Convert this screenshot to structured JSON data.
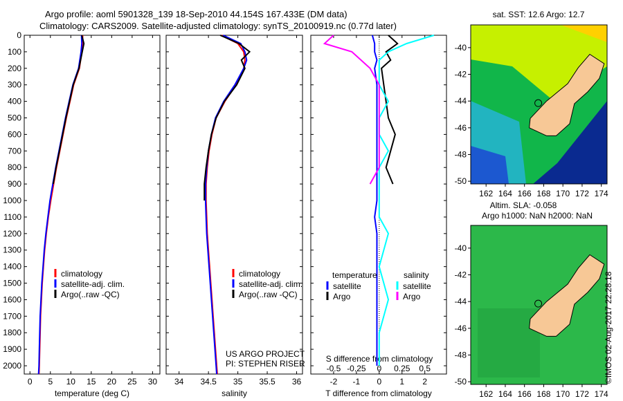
{
  "title_line1": "Argo profile: aoml 5901328_139 18-Sep-2010 44.154S 167.433E (DM data)",
  "title_line2": "Climatology: CARS2009. Satellite-adjusted climatology: synTS_20100919.nc (0.77d later)",
  "credit": "©IMOS 02-Aug-2017 22:28:18",
  "colors": {
    "climatology": "#ff0000",
    "satellite": "#0000ff",
    "argo": "#000000",
    "sal_satellite": "#00ffff",
    "sal_argo": "#ff00ff",
    "land": "#f7c896"
  },
  "chart_data": [
    {
      "type": "line",
      "id": "temperature",
      "xlabel": "temperature (deg C)",
      "ylabel": "",
      "xlim": [
        -1.4,
        31.8
      ],
      "ylim": [
        2050,
        0
      ],
      "xticks": [
        "0",
        "5",
        "10",
        "15",
        "20",
        "25",
        "30"
      ],
      "xtick_values": [
        0,
        5,
        10,
        15,
        20,
        25,
        30
      ],
      "yticks": [
        "0",
        "100",
        "200",
        "300",
        "400",
        "500",
        "600",
        "700",
        "800",
        "900",
        "1000",
        "1100",
        "1200",
        "1300",
        "1400",
        "1500",
        "1600",
        "1700",
        "1800",
        "1900",
        "2000"
      ],
      "legend": [
        "climatology",
        "satellite-adj. clim.",
        "Argo(..raw -QC)"
      ],
      "depth": [
        0,
        50,
        100,
        200,
        300,
        400,
        500,
        600,
        700,
        800,
        900,
        1000,
        1100,
        1200,
        1300,
        1400,
        1500,
        1600,
        1700,
        1800,
        1900,
        2000,
        2050
      ],
      "series": [
        {
          "name": "climatology",
          "color": "#ff0000",
          "values": [
            12.9,
            12.9,
            12.7,
            12.1,
            10.7,
            9.8,
            8.9,
            8.1,
            7.3,
            6.5,
            5.8,
            5.1,
            4.5,
            4.0,
            3.6,
            3.3,
            3.0,
            2.8,
            2.6,
            2.5,
            2.4,
            2.3,
            2.2
          ]
        },
        {
          "name": "satellite-adj. clim.",
          "color": "#0000ff",
          "values": [
            12.6,
            12.7,
            12.5,
            11.9,
            10.5,
            9.6,
            8.7,
            7.9,
            7.1,
            6.3,
            5.6,
            4.9,
            4.4,
            3.9,
            3.5,
            3.2,
            2.9,
            2.7,
            2.5,
            2.4,
            2.3,
            2.2,
            2.1
          ]
        },
        {
          "name": "Argo(..raw -QC)",
          "color": "#000000",
          "values": [
            12.7,
            13.2,
            12.8,
            12.0,
            10.6,
            9.7,
            8.8,
            8.0,
            7.2,
            6.4,
            5.7,
            null,
            null,
            null,
            null,
            null,
            null,
            null,
            null,
            null,
            null,
            null,
            null
          ]
        }
      ]
    },
    {
      "type": "line",
      "id": "salinity",
      "xlabel": "salinity",
      "xlim": [
        33.78,
        36.1
      ],
      "ylim": [
        2050,
        0
      ],
      "xticks": [
        "34",
        "34.5",
        "35",
        "35.5",
        "36"
      ],
      "xtick_values": [
        34,
        34.5,
        35,
        35.5,
        36
      ],
      "legend": [
        "climatology",
        "satellite-adj. clim.",
        "Argo(..raw -QC)"
      ],
      "annotation": [
        "US ARGO PROJECT",
        "PI: STEPHEN RISER"
      ],
      "depth": [
        0,
        50,
        100,
        150,
        200,
        300,
        400,
        500,
        600,
        700,
        800,
        900,
        1000,
        1100,
        1200,
        1300,
        1400,
        1500,
        1600,
        1700,
        1800,
        1900,
        2000,
        2050
      ],
      "series": [
        {
          "name": "climatology",
          "color": "#ff0000",
          "values": [
            34.72,
            35.0,
            35.1,
            35.12,
            35.1,
            34.97,
            34.78,
            34.63,
            34.56,
            34.51,
            34.48,
            34.46,
            34.46,
            34.47,
            34.48,
            34.5,
            34.52,
            34.54,
            34.56,
            34.58,
            34.6,
            34.62,
            34.64,
            34.65
          ]
        },
        {
          "name": "satellite-adj. clim.",
          "color": "#0000ff",
          "values": [
            34.75,
            35.05,
            35.12,
            35.15,
            35.1,
            34.95,
            34.76,
            34.62,
            34.55,
            34.5,
            34.47,
            34.45,
            34.45,
            34.46,
            34.47,
            34.49,
            34.51,
            34.53,
            34.55,
            34.57,
            34.59,
            34.61,
            34.63,
            34.64
          ]
        },
        {
          "name": "Argo(..raw -QC)",
          "color": "#000000",
          "values": [
            34.7,
            35.02,
            35.2,
            35.06,
            35.12,
            34.98,
            34.77,
            34.63,
            34.55,
            34.5,
            34.46,
            34.43,
            34.43,
            null,
            null,
            null,
            null,
            null,
            null,
            null,
            null,
            null,
            null,
            null
          ]
        }
      ]
    },
    {
      "type": "line",
      "id": "differences",
      "xlabel": "T difference from climatology",
      "x2label": "S difference from climatology",
      "xlim": [
        -3.0,
        2.95
      ],
      "ylim": [
        2050,
        0
      ],
      "xticks": [
        "-2",
        "-1",
        "0",
        "1",
        "2"
      ],
      "xtick_values": [
        -2,
        -1,
        0,
        1,
        2
      ],
      "x2ticks": [
        "-0.5",
        "-0.25",
        "0",
        "0.25",
        "0.5"
      ],
      "x2tick_values": [
        -0.5,
        -0.25,
        0,
        0.25,
        0.5
      ],
      "legend": {
        "temperature": [
          "satellite",
          "Argo"
        ],
        "salinity": [
          "satellite",
          "Argo"
        ],
        "temperature_title": "temperature",
        "salinity_title": "salinity"
      },
      "depth": [
        0,
        50,
        100,
        150,
        200,
        300,
        400,
        500,
        600,
        700,
        800,
        900,
        1000,
        1100,
        1200,
        1400,
        1600,
        1800,
        2000
      ],
      "series": [
        {
          "name": "T satellite",
          "color": "#0000ff",
          "values": [
            -0.3,
            -0.2,
            -0.2,
            -0.1,
            -0.2,
            -0.1,
            -0.1,
            -0.1,
            -0.1,
            -0.1,
            -0.1,
            -0.1,
            -0.1,
            -0.2,
            -0.1,
            -0.1,
            -0.1,
            -0.1,
            -0.1
          ]
        },
        {
          "name": "T Argo",
          "color": "#000000",
          "values": [
            0.4,
            0.8,
            0.3,
            0.5,
            0.1,
            0.2,
            0.3,
            0.4,
            0.7,
            0.5,
            0.3,
            0.6,
            null,
            null,
            null,
            null,
            null,
            null,
            null
          ]
        },
        {
          "name": "S satellite",
          "color": "#00ffff",
          "values": [
            0.6,
            0.3,
            0.1,
            0.0,
            0.0,
            0.0,
            0.1,
            0.0,
            0.0,
            0.1,
            0.0,
            0.0,
            0.0,
            0.0,
            0.1,
            0.0,
            0.1,
            0.0,
            0.0
          ]
        },
        {
          "name": "S Argo",
          "color": "#ff00ff",
          "values": [
            -0.5,
            -0.6,
            -0.3,
            -0.2,
            -0.1,
            0.0,
            0.0,
            0.0,
            0.0,
            0.0,
            0.0,
            -0.1,
            null,
            null,
            null,
            null,
            null,
            null,
            null
          ]
        }
      ]
    }
  ],
  "maps": [
    {
      "title": "sat. SST: 12.6 Argo: 12.7",
      "lon_ticks": [
        "162",
        "164",
        "166",
        "168",
        "170",
        "172",
        "174"
      ],
      "lat_ticks": [
        "-40",
        "-42",
        "-44",
        "-46",
        "-48",
        "-50"
      ]
    },
    {
      "title_line1": "Altim. SLA: -0.058",
      "title_line2": "Argo h1000: NaN h2000: NaN",
      "lon_ticks": [
        "162",
        "164",
        "166",
        "168",
        "170",
        "172",
        "174"
      ],
      "lat_ticks": [
        "-40",
        "-42",
        "-44",
        "-46",
        "-48",
        "-50"
      ]
    }
  ],
  "argo_position": {
    "lon": 167.433,
    "lat": -44.154
  }
}
